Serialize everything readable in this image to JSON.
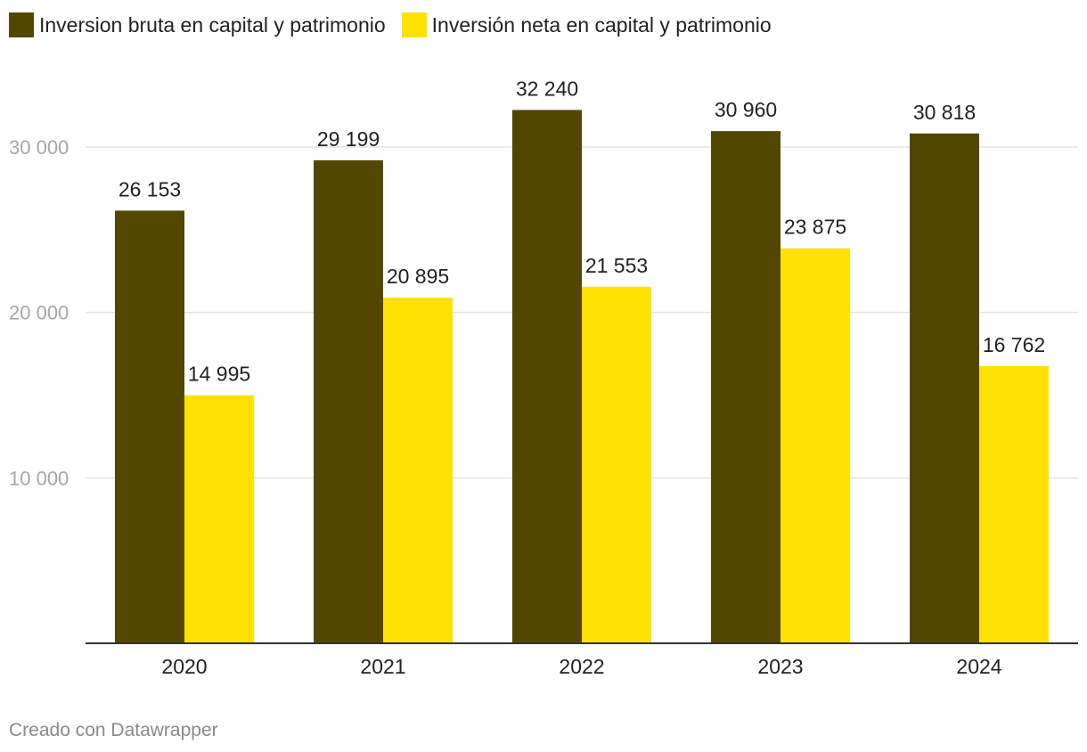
{
  "legend": [
    {
      "label": "Inversion bruta en capital y patrimonio",
      "color": "#534600"
    },
    {
      "label": "Inversión neta en capital y patrimonio",
      "color": "#ffe100"
    }
  ],
  "footer": {
    "credit": "Creado con Datawrapper"
  },
  "chart_data": {
    "type": "bar",
    "categories": [
      "2020",
      "2021",
      "2022",
      "2023",
      "2024"
    ],
    "series": [
      {
        "name": "Inversion bruta en capital y patrimonio",
        "color": "#534600",
        "values": [
          26153,
          29199,
          32240,
          30960,
          30818
        ]
      },
      {
        "name": "Inversión neta en capital y patrimonio",
        "color": "#ffe100",
        "values": [
          14995,
          20895,
          21553,
          23875,
          16762
        ]
      }
    ],
    "value_labels": [
      [
        "26 153",
        "29 199",
        "32 240",
        "30 960",
        "30 818"
      ],
      [
        "14 995",
        "20 895",
        "21 553",
        "23 875",
        "16 762"
      ]
    ],
    "ylim": [
      0,
      34000
    ],
    "yticks": [
      10000,
      20000,
      30000
    ],
    "ytick_labels": [
      "10 000",
      "20 000",
      "30 000"
    ],
    "grid": true,
    "legend_position": "top-left"
  }
}
